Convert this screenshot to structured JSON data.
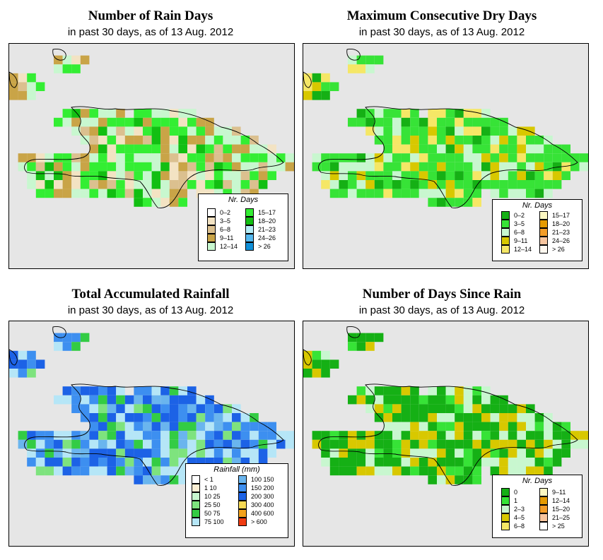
{
  "panels": [
    {
      "title": "Number of Rain Days",
      "subtitle": "in past 30 days, as of  13 Aug. 2012",
      "legend": {
        "title": "Nr. Days",
        "items": [
          {
            "label": "0–2",
            "color": "#ffffff"
          },
          {
            "label": "3–5",
            "color": "#f3e3c3"
          },
          {
            "label": "6–8",
            "color": "#dbc08f"
          },
          {
            "label": "9–11",
            "color": "#c9a447"
          },
          {
            "label": "12–14",
            "color": "#c8f7cf"
          },
          {
            "label": "15–17",
            "color": "#33ee33"
          },
          {
            "label": "18–20",
            "color": "#12bf12"
          },
          {
            "label": "21–23",
            "color": "#b5edf7"
          },
          {
            "label": "24–26",
            "color": "#55b8ee"
          },
          {
            "label": "> 26",
            "color": "#0f8fd8"
          }
        ]
      }
    },
    {
      "title": "Maximum Consecutive Dry Days",
      "subtitle": "in past 30 days, as of  13 Aug. 2012",
      "legend": {
        "title": "Nr. Days",
        "items": [
          {
            "label": "0–2",
            "color": "#15b015"
          },
          {
            "label": "3–5",
            "color": "#37e337"
          },
          {
            "label": "6–8",
            "color": "#c8f7cf"
          },
          {
            "label": "9–11",
            "color": "#d8c800"
          },
          {
            "label": "12–14",
            "color": "#f5e766"
          },
          {
            "label": "15–17",
            "color": "#fdf8c2"
          },
          {
            "label": "18–20",
            "color": "#e59a00"
          },
          {
            "label": "21–23",
            "color": "#f49d28"
          },
          {
            "label": "24–26",
            "color": "#f8c59e"
          },
          {
            "label": "> 26",
            "color": "#fff8f0"
          }
        ]
      }
    },
    {
      "title": "Total Accumulated Rainfall",
      "subtitle": "in past 30 days, as of  13 Aug. 2012",
      "legend": {
        "title": "Rainfall (mm)",
        "items": [
          {
            "label": "< 1",
            "color": "#ffffff"
          },
          {
            "label": "1   10",
            "color": "#fbeed3"
          },
          {
            "label": "10   25",
            "color": "#c8f7cf"
          },
          {
            "label": "25   50",
            "color": "#7ee37e"
          },
          {
            "label": "50   75",
            "color": "#33cc44"
          },
          {
            "label": "75   100",
            "color": "#b5e6f7"
          },
          {
            "label": "100   150",
            "color": "#6ab5ee"
          },
          {
            "label": "150   200",
            "color": "#3d8ff0"
          },
          {
            "label": "200   300",
            "color": "#1c62e6"
          },
          {
            "label": "300   400",
            "color": "#f7da55"
          },
          {
            "label": "400   600",
            "color": "#f3a21c"
          },
          {
            "label": "> 600",
            "color": "#f03c12"
          }
        ]
      }
    },
    {
      "title": "Number of Days Since Rain",
      "subtitle": "in past 30 days, as of  13 Aug. 2012",
      "legend": {
        "title": "Nr. Days",
        "items": [
          {
            "label": "0",
            "color": "#15b015"
          },
          {
            "label": "1",
            "color": "#37e337"
          },
          {
            "label": "2–3",
            "color": "#c8f7cf"
          },
          {
            "label": "4–5",
            "color": "#d8c800"
          },
          {
            "label": "6–8",
            "color": "#f5e766"
          },
          {
            "label": "9–11",
            "color": "#fdf8c2"
          },
          {
            "label": "12–14",
            "color": "#e59a00"
          },
          {
            "label": "15–20",
            "color": "#f49d28"
          },
          {
            "label": "21–25",
            "color": "#f8c59e"
          },
          {
            "label": "> 25",
            "color": "#ffffff"
          }
        ]
      }
    }
  ]
}
